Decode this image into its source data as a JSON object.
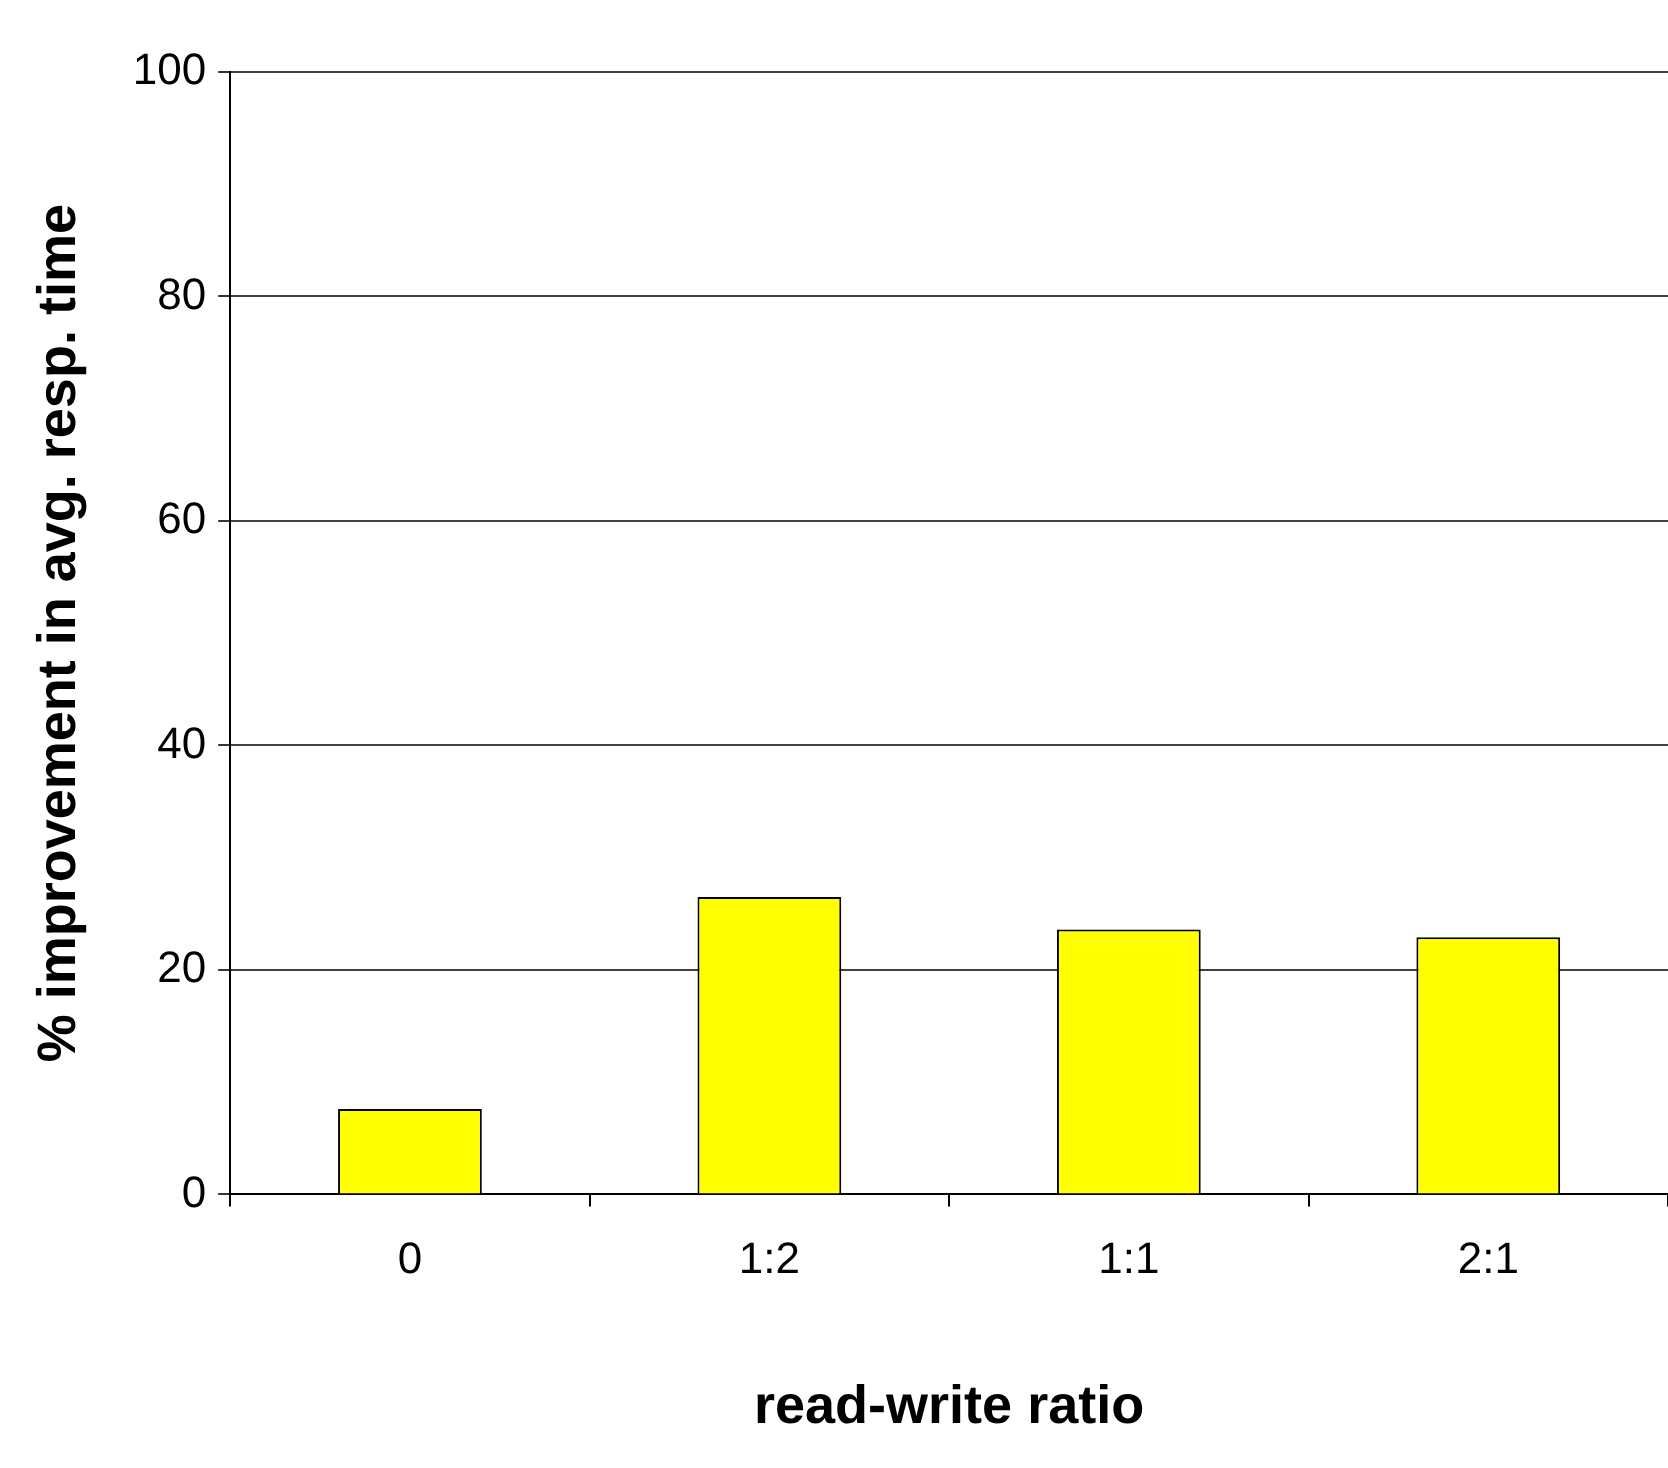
{
  "chart_data": {
    "type": "bar",
    "xlabel": "read-write ratio",
    "ylabel": "% improvement in avg. resp. time",
    "categories": [
      "0",
      "1:2",
      "1:1",
      "2:1"
    ],
    "values": [
      7.6,
      26.5,
      23.6,
      22.9
    ],
    "color": "#ffff00",
    "ylim": [
      0,
      100
    ],
    "yticks": [
      0,
      20,
      40,
      60,
      80,
      100
    ],
    "grid": "y",
    "legend": false
  }
}
